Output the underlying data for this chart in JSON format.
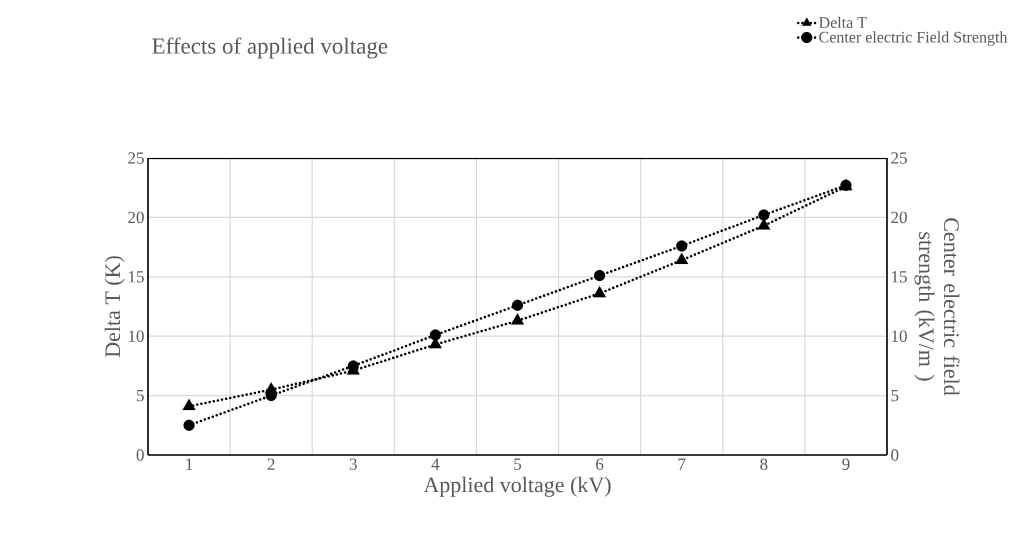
{
  "chart_data": {
    "type": "line",
    "title": "Effects of applied voltage",
    "xlabel": "Applied voltage (kV)",
    "ylabel": "Delta T (K)",
    "y2label": "Center electric field strength (kV/m )",
    "categories": [
      "1",
      "2",
      "3",
      "4",
      "5",
      "6",
      "7",
      "8",
      "9"
    ],
    "series": [
      {
        "name": "Delta T",
        "color": "#000000",
        "marker": "triangle",
        "values": [
          4.1,
          5.5,
          7.1,
          9.3,
          11.3,
          13.6,
          16.4,
          19.3,
          22.6
        ]
      },
      {
        "name": "Center electric Field Strength",
        "color": "#000000",
        "marker": "circle",
        "axis": "y2",
        "values": [
          2.5,
          5.0,
          7.5,
          10.1,
          12.6,
          15.1,
          17.6,
          20.2,
          22.7
        ]
      }
    ],
    "ylim": [
      0,
      25
    ],
    "yticks": [
      0,
      5,
      10,
      15,
      20,
      25
    ],
    "y2lim": [
      0,
      25
    ],
    "y2ticks": [
      0,
      5,
      10,
      15,
      20,
      25
    ],
    "grid": true,
    "legend": "top right",
    "line_style": "dotted"
  }
}
